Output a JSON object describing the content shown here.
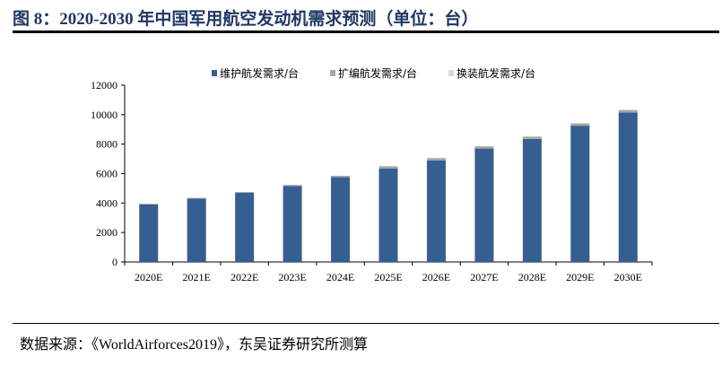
{
  "header": {
    "title": "图 8：2020-2030 年中国军用航空发动机需求预测（单位：台）"
  },
  "footer": {
    "source": "数据来源：《WorldAirforces2019》，东吴证券研究所测算"
  },
  "chart_data": {
    "type": "bar",
    "stacked": true,
    "categories": [
      "2020E",
      "2021E",
      "2022E",
      "2023E",
      "2024E",
      "2025E",
      "2026E",
      "2027E",
      "2028E",
      "2029E",
      "2030E"
    ],
    "series": [
      {
        "name": "维护航发需求/台",
        "color": "#365f91",
        "values": [
          3900,
          4300,
          4700,
          5150,
          5750,
          6350,
          6900,
          7700,
          8350,
          9250,
          10150
        ]
      },
      {
        "name": "扩编航发需求/台",
        "color": "#a6a6a6",
        "values": [
          50,
          50,
          50,
          80,
          100,
          150,
          150,
          150,
          150,
          150,
          150
        ]
      },
      {
        "name": "换装航发需求/台",
        "color": "#d9d9d9",
        "values": [
          0,
          0,
          0,
          0,
          0,
          20,
          20,
          20,
          30,
          40,
          50
        ]
      }
    ],
    "ylim": [
      0,
      12000
    ],
    "yticks": [
      0,
      2000,
      4000,
      6000,
      8000,
      10000,
      12000
    ],
    "legend": "top",
    "grid": false
  }
}
